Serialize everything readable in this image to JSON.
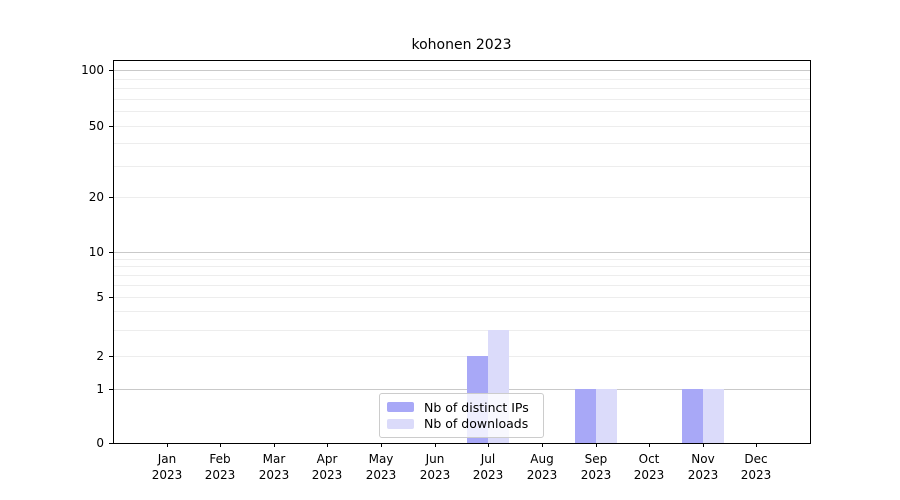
{
  "chart_data": {
    "type": "bar",
    "title": "kohonen 2023",
    "categories": [
      {
        "month": "Jan",
        "year": "2023"
      },
      {
        "month": "Feb",
        "year": "2023"
      },
      {
        "month": "Mar",
        "year": "2023"
      },
      {
        "month": "Apr",
        "year": "2023"
      },
      {
        "month": "May",
        "year": "2023"
      },
      {
        "month": "Jun",
        "year": "2023"
      },
      {
        "month": "Jul",
        "year": "2023"
      },
      {
        "month": "Aug",
        "year": "2023"
      },
      {
        "month": "Sep",
        "year": "2023"
      },
      {
        "month": "Oct",
        "year": "2023"
      },
      {
        "month": "Nov",
        "year": "2023"
      },
      {
        "month": "Dec",
        "year": "2023"
      }
    ],
    "series": [
      {
        "name": "Nb of distinct IPs",
        "color": "#a8a8f7",
        "values": [
          0,
          0,
          0,
          0,
          0,
          0,
          2,
          0,
          1,
          0,
          1,
          0
        ]
      },
      {
        "name": "Nb of downloads",
        "color": "#dbdbfa",
        "values": [
          0,
          0,
          0,
          0,
          0,
          0,
          3,
          0,
          1,
          0,
          1,
          0
        ]
      }
    ],
    "y_axis": {
      "scale": "log-like",
      "tick_labels": [
        "0",
        "1",
        "2",
        "5",
        "10",
        "20",
        "50",
        "100"
      ],
      "tick_values": [
        0,
        1,
        2,
        5,
        10,
        20,
        50,
        100
      ],
      "major_grid_values": [
        1,
        10,
        100
      ],
      "minor_grid_values": [
        2,
        3,
        4,
        5,
        6,
        7,
        8,
        9,
        20,
        30,
        40,
        50,
        60,
        70,
        80,
        90
      ],
      "ylim": [
        0,
        113
      ]
    },
    "legend_position": "inside-bottom-center",
    "grid": "horizontal-only"
  }
}
